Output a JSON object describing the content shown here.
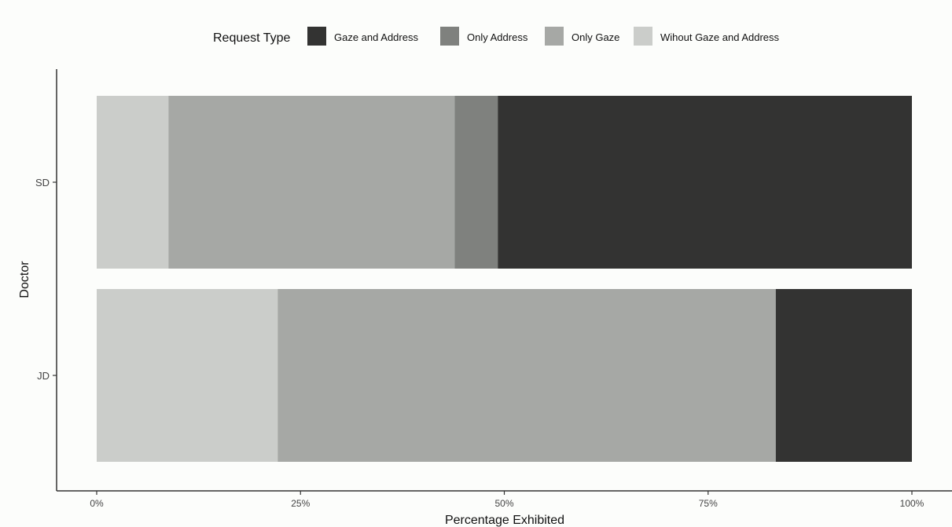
{
  "chart_data": {
    "type": "bar",
    "orientation": "horizontal",
    "stacked": true,
    "xlabel": "Percentage Exhibited",
    "ylabel": "Doctor",
    "xlim": [
      0,
      100
    ],
    "x_ticks": [
      0,
      25,
      50,
      75,
      100
    ],
    "x_tick_labels": [
      "0%",
      "25%",
      "50%",
      "75%",
      "100%"
    ],
    "categories": [
      "SD",
      "JD"
    ],
    "legend": {
      "title": "Request Type",
      "position": "top"
    },
    "grid": false,
    "series": [
      {
        "name": "Wihout Gaze and Address",
        "color": "#cbcdca",
        "values": [
          8.8,
          22.2
        ]
      },
      {
        "name": "Only Gaze",
        "color": "#a6a8a5",
        "values": [
          35.1,
          61.1
        ]
      },
      {
        "name": "Only Address",
        "color": "#7f817e",
        "values": [
          5.3,
          0
        ]
      },
      {
        "name": "Gaze and Address",
        "color": "#333332",
        "values": [
          50.8,
          16.7
        ]
      }
    ],
    "legend_order": [
      "Gaze and Address",
      "Only Address",
      "Only Gaze",
      "Wihout Gaze and Address"
    ]
  }
}
